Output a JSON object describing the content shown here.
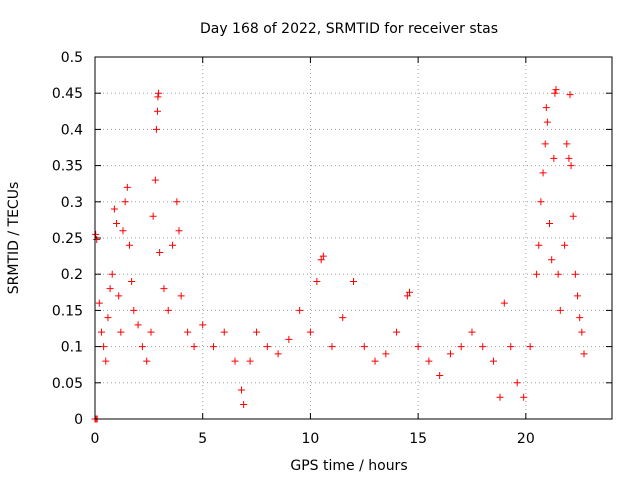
{
  "chart_data": {
    "type": "scatter",
    "title": "Day 168 of 2022, SRMTID for receiver stas",
    "xlabel": "GPS time / hours",
    "ylabel": "SRMTID / TECUs",
    "xlim": [
      0,
      24
    ],
    "ylim": [
      0,
      0.5
    ],
    "x_ticks": [
      0,
      5,
      10,
      15,
      20
    ],
    "x_tick_labels": [
      "0",
      "5",
      "10",
      "15",
      "20"
    ],
    "y_ticks": [
      0,
      0.05,
      0.1,
      0.15,
      0.2,
      0.25,
      0.3,
      0.35,
      0.4,
      0.45,
      0.5
    ],
    "y_tick_labels": [
      "0",
      "0.05",
      "0.1",
      "0.15",
      "0.2",
      "0.25",
      "0.3",
      "0.35",
      "0.4",
      "0.45",
      "0.5"
    ],
    "grid": true,
    "marker": "plus",
    "color": "#ff0000",
    "series": [
      {
        "name": "stas",
        "points": [
          [
            0.0,
            0.0
          ],
          [
            0.05,
            0.0
          ],
          [
            0.1,
            0.0
          ],
          [
            0.03,
            0.255
          ],
          [
            0.08,
            0.248
          ],
          [
            0.2,
            0.16
          ],
          [
            0.3,
            0.12
          ],
          [
            0.4,
            0.1
          ],
          [
            0.5,
            0.08
          ],
          [
            0.6,
            0.14
          ],
          [
            0.7,
            0.18
          ],
          [
            0.8,
            0.2
          ],
          [
            0.9,
            0.29
          ],
          [
            1.0,
            0.27
          ],
          [
            1.1,
            0.17
          ],
          [
            1.2,
            0.12
          ],
          [
            1.3,
            0.26
          ],
          [
            1.4,
            0.3
          ],
          [
            1.5,
            0.32
          ],
          [
            1.6,
            0.24
          ],
          [
            1.7,
            0.19
          ],
          [
            1.8,
            0.15
          ],
          [
            2.0,
            0.13
          ],
          [
            2.2,
            0.1
          ],
          [
            2.4,
            0.08
          ],
          [
            2.6,
            0.12
          ],
          [
            2.7,
            0.28
          ],
          [
            2.8,
            0.33
          ],
          [
            2.85,
            0.4
          ],
          [
            2.9,
            0.425
          ],
          [
            2.92,
            0.445
          ],
          [
            2.95,
            0.45
          ],
          [
            3.0,
            0.23
          ],
          [
            3.2,
            0.18
          ],
          [
            3.4,
            0.15
          ],
          [
            3.6,
            0.24
          ],
          [
            3.8,
            0.3
          ],
          [
            3.9,
            0.26
          ],
          [
            4.0,
            0.17
          ],
          [
            4.3,
            0.12
          ],
          [
            4.6,
            0.1
          ],
          [
            5.0,
            0.13
          ],
          [
            5.5,
            0.1
          ],
          [
            6.0,
            0.12
          ],
          [
            6.5,
            0.08
          ],
          [
            6.8,
            0.04
          ],
          [
            6.9,
            0.02
          ],
          [
            7.2,
            0.08
          ],
          [
            7.5,
            0.12
          ],
          [
            8.0,
            0.1
          ],
          [
            8.5,
            0.09
          ],
          [
            9.0,
            0.11
          ],
          [
            9.5,
            0.15
          ],
          [
            10.0,
            0.12
          ],
          [
            10.3,
            0.19
          ],
          [
            10.5,
            0.22
          ],
          [
            10.6,
            0.225
          ],
          [
            11.0,
            0.1
          ],
          [
            11.5,
            0.14
          ],
          [
            12.0,
            0.19
          ],
          [
            12.5,
            0.1
          ],
          [
            13.0,
            0.08
          ],
          [
            13.5,
            0.09
          ],
          [
            14.0,
            0.12
          ],
          [
            14.5,
            0.17
          ],
          [
            14.6,
            0.175
          ],
          [
            15.0,
            0.1
          ],
          [
            15.5,
            0.08
          ],
          [
            16.0,
            0.06
          ],
          [
            16.5,
            0.09
          ],
          [
            17.0,
            0.1
          ],
          [
            17.5,
            0.12
          ],
          [
            18.0,
            0.1
          ],
          [
            18.5,
            0.08
          ],
          [
            18.8,
            0.03
          ],
          [
            19.0,
            0.16
          ],
          [
            19.3,
            0.1
          ],
          [
            19.6,
            0.05
          ],
          [
            19.9,
            0.03
          ],
          [
            20.2,
            0.1
          ],
          [
            20.5,
            0.2
          ],
          [
            20.6,
            0.24
          ],
          [
            20.7,
            0.3
          ],
          [
            20.8,
            0.34
          ],
          [
            20.9,
            0.38
          ],
          [
            20.95,
            0.43
          ],
          [
            21.0,
            0.41
          ],
          [
            21.1,
            0.27
          ],
          [
            21.2,
            0.22
          ],
          [
            21.3,
            0.36
          ],
          [
            21.35,
            0.45
          ],
          [
            21.4,
            0.455
          ],
          [
            21.5,
            0.2
          ],
          [
            21.6,
            0.15
          ],
          [
            21.8,
            0.24
          ],
          [
            21.9,
            0.38
          ],
          [
            22.0,
            0.36
          ],
          [
            22.05,
            0.448
          ],
          [
            22.1,
            0.35
          ],
          [
            22.2,
            0.28
          ],
          [
            22.3,
            0.2
          ],
          [
            22.4,
            0.17
          ],
          [
            22.5,
            0.14
          ],
          [
            22.6,
            0.12
          ],
          [
            22.7,
            0.09
          ]
        ]
      }
    ]
  }
}
